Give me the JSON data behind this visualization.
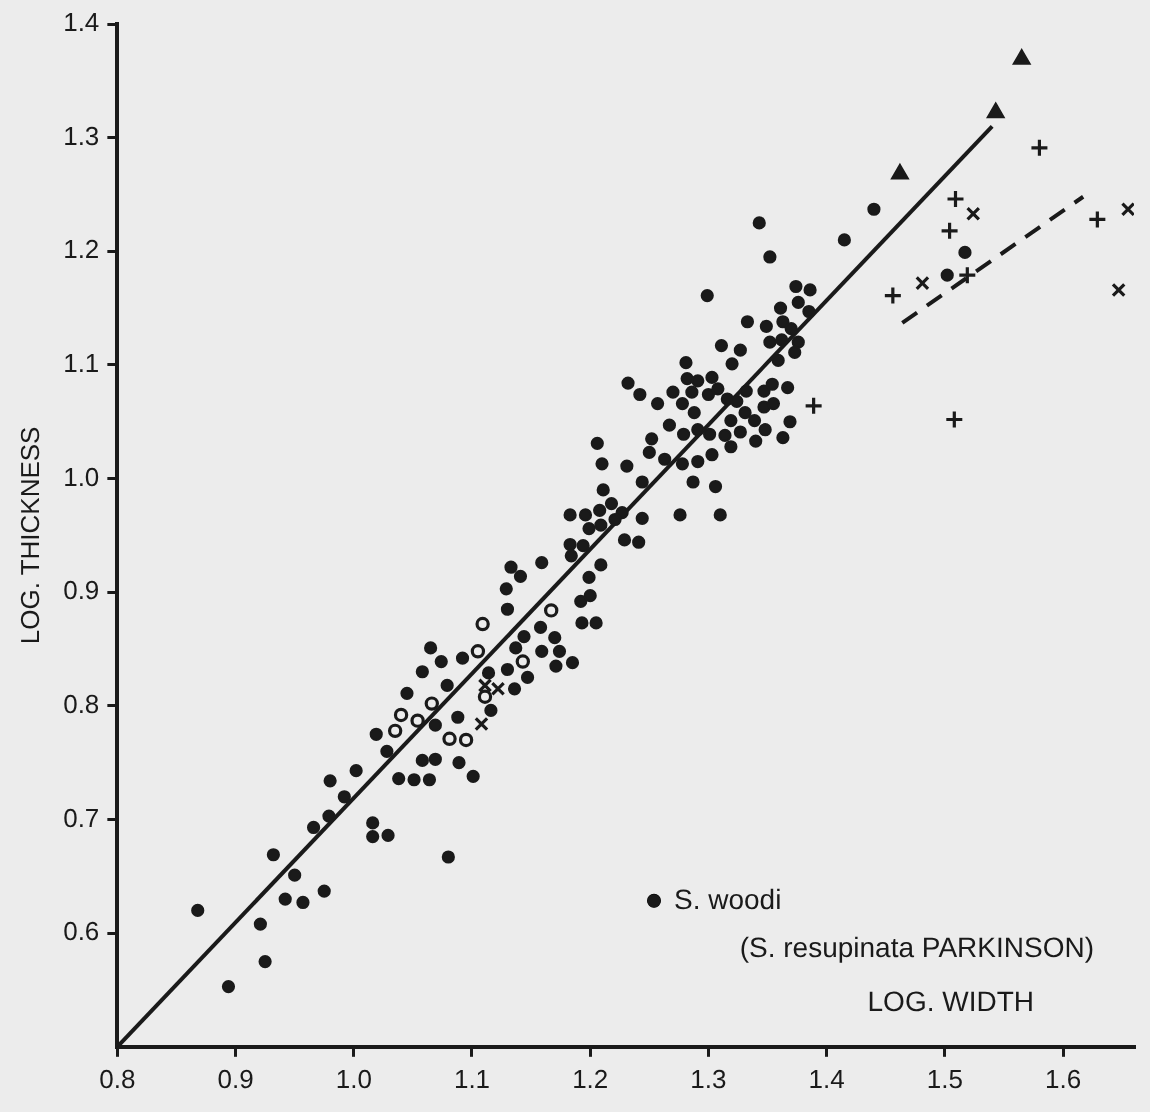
{
  "chart_data": {
    "type": "scatter",
    "xlabel": "LOG. WIDTH",
    "ylabel": "LOG. THICKNESS",
    "annotations": [
      "(S. resupinata PARKINSON)"
    ],
    "legend": "bottom right",
    "grid": false,
    "xlim": [
      0.8,
      1.66
    ],
    "ylim": [
      0.5,
      1.4
    ],
    "xticks": [
      0.8,
      0.9,
      {
        "value": 1.0,
        "label": "1.0"
      },
      1.1,
      1.2,
      1.3,
      1.4,
      1.5,
      1.6
    ],
    "yticks": [
      0.6,
      0.7,
      0.8,
      0.9,
      {
        "value": 1.0,
        "label": "1.0"
      },
      1.1,
      1.2,
      1.3,
      1.4
    ],
    "series": [
      {
        "name": "S. woodi",
        "type": "scatter",
        "marker": "circle",
        "color": "#1a1a1a",
        "x": [
          0.868,
          0.894,
          0.921,
          0.925,
          0.932,
          0.942,
          0.95,
          0.957,
          0.966,
          0.975,
          0.979,
          0.98,
          0.992,
          1.002,
          1.016,
          1.016,
          1.029,
          1.019,
          1.028,
          1.038,
          1.051,
          1.064,
          1.058,
          1.069,
          1.089,
          1.101,
          1.08,
          1.045,
          1.058,
          1.065,
          1.074,
          1.079,
          1.092,
          1.088,
          1.069,
          1.13,
          1.114,
          1.116,
          1.13,
          1.136,
          1.137,
          1.147,
          1.144,
          1.158,
          1.159,
          1.17,
          1.171,
          1.174,
          1.185,
          1.193,
          1.205,
          1.192,
          1.343,
          1.352,
          1.415,
          1.299,
          1.374,
          1.386,
          1.376,
          1.361,
          1.385,
          1.333,
          1.349,
          1.363,
          1.37,
          1.352,
          1.362,
          1.376,
          1.311,
          1.327,
          1.359,
          1.373,
          1.281,
          1.32,
          1.232,
          1.242,
          1.282,
          1.291,
          1.303,
          1.27,
          1.286,
          1.3,
          1.308,
          1.257,
          1.278,
          1.288,
          1.316,
          1.324,
          1.332,
          1.347,
          1.354,
          1.367,
          1.347,
          1.355,
          1.331,
          1.319,
          1.369,
          1.339,
          1.267,
          1.252,
          1.279,
          1.291,
          1.301,
          1.314,
          1.327,
          1.348,
          1.363,
          1.34,
          1.319,
          1.25,
          1.263,
          1.278,
          1.291,
          1.303,
          1.206,
          1.21,
          1.231,
          1.244,
          1.287,
          1.306,
          1.276,
          1.31,
          1.211,
          1.218,
          1.208,
          1.183,
          1.196,
          1.227,
          1.244,
          1.199,
          1.209,
          1.221,
          1.183,
          1.194,
          1.229,
          1.241,
          1.184,
          1.209,
          1.199,
          1.133,
          1.159,
          1.141,
          1.129,
          1.2,
          1.44,
          1.517,
          1.502
        ],
        "values": [
          0.62,
          0.553,
          0.608,
          0.575,
          0.669,
          0.63,
          0.651,
          0.627,
          0.693,
          0.637,
          0.703,
          0.734,
          0.72,
          0.743,
          0.697,
          0.685,
          0.686,
          0.775,
          0.76,
          0.736,
          0.735,
          0.735,
          0.752,
          0.753,
          0.75,
          0.738,
          0.667,
          0.811,
          0.83,
          0.851,
          0.839,
          0.818,
          0.842,
          0.79,
          0.783,
          0.885,
          0.829,
          0.796,
          0.832,
          0.815,
          0.851,
          0.825,
          0.861,
          0.869,
          0.848,
          0.86,
          0.835,
          0.848,
          0.838,
          0.873,
          0.873,
          0.892,
          1.225,
          1.195,
          1.21,
          1.161,
          1.169,
          1.166,
          1.155,
          1.15,
          1.147,
          1.138,
          1.134,
          1.138,
          1.132,
          1.12,
          1.122,
          1.12,
          1.117,
          1.113,
          1.104,
          1.111,
          1.102,
          1.101,
          1.084,
          1.074,
          1.088,
          1.086,
          1.089,
          1.076,
          1.076,
          1.074,
          1.079,
          1.066,
          1.066,
          1.058,
          1.07,
          1.068,
          1.077,
          1.077,
          1.083,
          1.08,
          1.063,
          1.066,
          1.058,
          1.051,
          1.05,
          1.051,
          1.047,
          1.035,
          1.039,
          1.043,
          1.039,
          1.038,
          1.041,
          1.043,
          1.036,
          1.033,
          1.028,
          1.023,
          1.017,
          1.013,
          1.015,
          1.021,
          1.031,
          1.013,
          1.011,
          0.997,
          0.997,
          0.993,
          0.968,
          0.968,
          0.99,
          0.978,
          0.972,
          0.968,
          0.968,
          0.97,
          0.965,
          0.956,
          0.959,
          0.964,
          0.942,
          0.941,
          0.946,
          0.944,
          0.932,
          0.924,
          0.913,
          0.922,
          0.926,
          0.914,
          0.903,
          0.897,
          1.237,
          1.199,
          1.179
        ]
      },
      {
        "type": "scatter",
        "marker": "circle-open",
        "color": "#1a1a1a",
        "x": [
          1.109,
          1.105,
          1.111,
          1.04,
          1.035,
          1.054,
          1.066,
          1.081,
          1.095,
          1.143,
          1.167
        ],
        "values": [
          0.872,
          0.848,
          0.808,
          0.792,
          0.778,
          0.787,
          0.802,
          0.771,
          0.77,
          0.839,
          0.884
        ]
      },
      {
        "type": "scatter",
        "marker": "cross",
        "color": "#1a1a1a",
        "x": [
          1.111,
          1.122,
          1.108,
          1.524,
          1.481,
          1.655,
          1.647
        ],
        "values": [
          0.818,
          0.815,
          0.784,
          1.233,
          1.172,
          1.237,
          1.166
        ]
      },
      {
        "type": "scatter",
        "marker": "plus",
        "color": "#1a1a1a",
        "x": [
          1.58,
          1.509,
          1.504,
          1.519,
          1.456,
          1.629,
          1.508,
          1.389
        ],
        "values": [
          1.291,
          1.246,
          1.218,
          1.179,
          1.161,
          1.228,
          1.052,
          1.064
        ]
      },
      {
        "type": "scatter",
        "marker": "triangle",
        "color": "#1a1a1a",
        "x": [
          1.565,
          1.543,
          1.462
        ],
        "values": [
          1.369,
          1.322,
          1.268
        ]
      },
      {
        "type": "line",
        "marker": "none",
        "line_style": "solid",
        "color": "#1a1a1a",
        "x": [
          0.8,
          1.54
        ],
        "values": [
          0.5,
          1.31
        ]
      },
      {
        "type": "line",
        "marker": "none",
        "line_style": "dashed",
        "color": "#1a1a1a",
        "x": [
          1.464,
          1.617
        ],
        "values": [
          1.137,
          1.248
        ]
      }
    ]
  }
}
